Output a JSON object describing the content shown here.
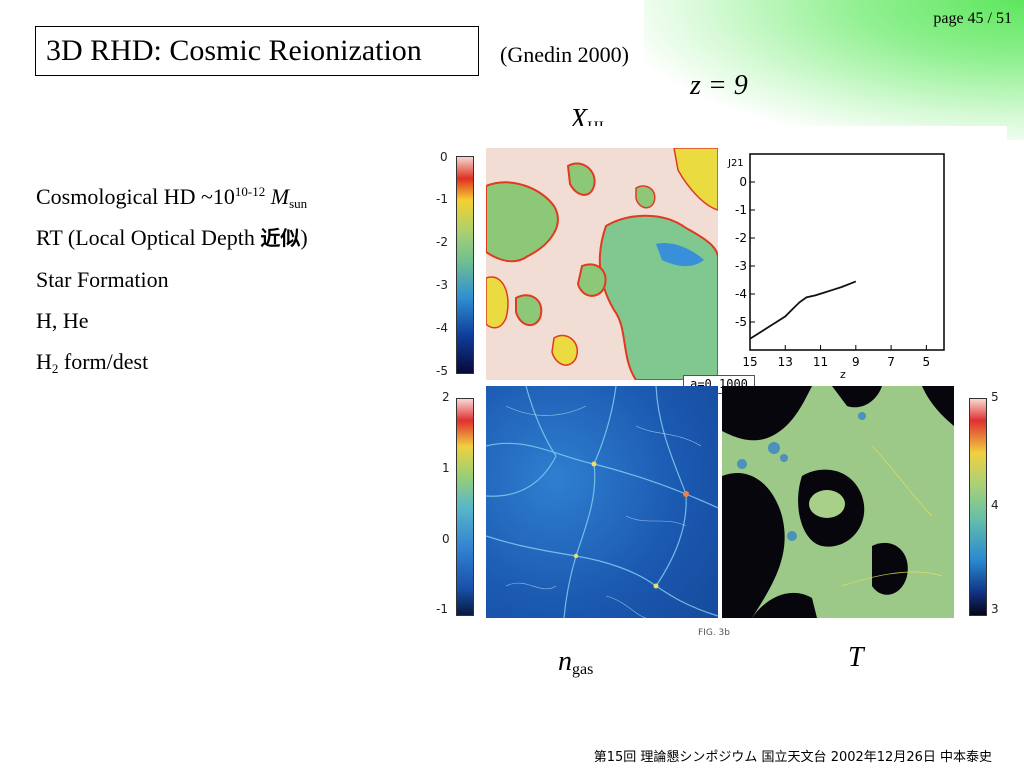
{
  "page": "page 45 / 51",
  "title": "3D RHD: Cosmic Reionization",
  "reference": "(Gnedin 2000)",
  "redshift_label": "z = 9",
  "labels": {
    "xhi_main": "X",
    "xhi_sub": "HI",
    "ngas_main": "n",
    "ngas_sub": "gas",
    "temp": "T"
  },
  "bullets": {
    "b1_prefix": "Cosmological HD ~10",
    "b1_sup": "10-12",
    "b1_mass": "M",
    "b1_sub": "sun",
    "b2_prefix": "RT (Local Optical Depth ",
    "b2_jp": "近似",
    "b2_suffix": ")",
    "b3": "Star Formation",
    "b4": "H, He",
    "b5_prefix": "H",
    "b5_sub": "2",
    "b5_suffix": " form/dest"
  },
  "figure": {
    "colorbar_xhi_ticks": [
      "0",
      "-1",
      "-2",
      "-3",
      "-4",
      "-5"
    ],
    "colorbar_n_ticks": [
      "2",
      "1",
      "0",
      "-1"
    ],
    "colorbar_t_ticks": [
      "5",
      "4",
      "3"
    ],
    "scale_factor": "a=0.1000",
    "caption": "FIG. 3b"
  },
  "chart_data": {
    "type": "line",
    "ylabel": "J21",
    "xlabel": "z",
    "xlim": [
      15,
      4
    ],
    "ylim": [
      -6,
      1
    ],
    "x_ticks": [
      "15",
      "13",
      "11",
      "9",
      "7",
      "5"
    ],
    "y_ticks": [
      "0",
      "-1",
      "-2",
      "-3",
      "-4",
      "-5"
    ],
    "series": [
      {
        "x": [
          15,
          14.5,
          14,
          13.5,
          13,
          12.6,
          12.2,
          11.8,
          11.3,
          10.8,
          10.3,
          9.8,
          9.3,
          9.0
        ],
        "y": [
          -5.6,
          -5.4,
          -5.2,
          -5.0,
          -4.8,
          -4.55,
          -4.3,
          -4.12,
          -4.05,
          -3.95,
          -3.85,
          -3.75,
          -3.63,
          -3.55
        ]
      }
    ]
  },
  "footer": "第15回 理論懇シンポジウム 国立天文台 2002年12月26日 中本泰史"
}
